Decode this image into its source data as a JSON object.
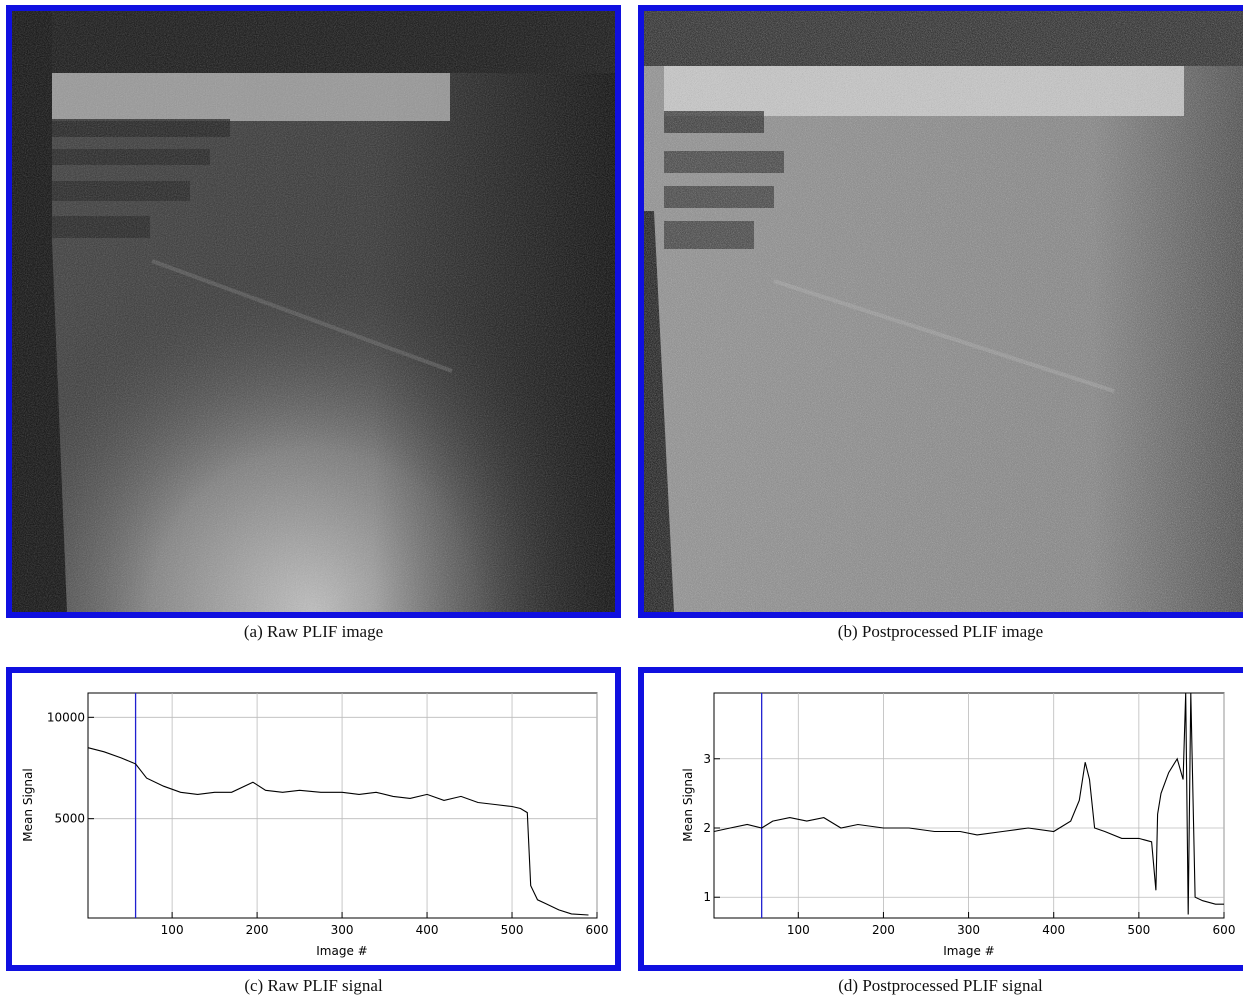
{
  "figure": {
    "panels": [
      {
        "id": "a",
        "caption": "(a) Raw PLIF image"
      },
      {
        "id": "b",
        "caption": "(b) Postprocessed PLIF image"
      },
      {
        "id": "c",
        "caption": "(c) Raw PLIF signal"
      },
      {
        "id": "d",
        "caption": "(d) Postprocessed PLIF signal"
      }
    ]
  },
  "chart_data": [
    {
      "type": "line",
      "xlabel": "Image #",
      "ylabel": "Mean Signal",
      "xlim": [
        1,
        600
      ],
      "ylim": [
        100,
        11200
      ],
      "xticks": [
        "100",
        "200",
        "300",
        "400",
        "500",
        "600"
      ],
      "yticks": [
        "5000",
        "10000"
      ],
      "grid": true,
      "marker_line_x": 57,
      "marker_line_color": "#2020d0",
      "series": [
        {
          "x": [
            1,
            20,
            40,
            57,
            70,
            90,
            110,
            130,
            150,
            170,
            195,
            210,
            230,
            250,
            275,
            300,
            320,
            340,
            360,
            380,
            400,
            420,
            440,
            460,
            480,
            500,
            510,
            518,
            522,
            530,
            540,
            555,
            570,
            590
          ],
          "y": [
            8500,
            8300,
            8000,
            7700,
            7000,
            6600,
            6300,
            6200,
            6300,
            6300,
            6800,
            6400,
            6300,
            6400,
            6300,
            6300,
            6200,
            6300,
            6100,
            6000,
            6200,
            5900,
            6100,
            5800,
            5700,
            5600,
            5500,
            5300,
            1700,
            1000,
            800,
            500,
            300,
            250
          ]
        }
      ]
    },
    {
      "type": "line",
      "xlabel": "Image #",
      "ylabel": "Mean Signal",
      "xlim": [
        1,
        600
      ],
      "ylim": [
        0.7,
        3.95
      ],
      "xticks": [
        "100",
        "200",
        "300",
        "400",
        "500",
        "600"
      ],
      "yticks": [
        "1",
        "2",
        "3"
      ],
      "grid": true,
      "marker_line_x": 57,
      "marker_line_color": "#2020d0",
      "series": [
        {
          "x": [
            1,
            20,
            40,
            57,
            70,
            90,
            110,
            130,
            150,
            170,
            200,
            230,
            260,
            290,
            310,
            340,
            370,
            400,
            420,
            430,
            437,
            442,
            448,
            460,
            480,
            500,
            515,
            520,
            522,
            526,
            535,
            545,
            552,
            555,
            558,
            561,
            566,
            575,
            590,
            600
          ],
          "y": [
            1.95,
            2.0,
            2.05,
            2.0,
            2.1,
            2.15,
            2.1,
            2.15,
            2.0,
            2.05,
            2.0,
            2.0,
            1.95,
            1.95,
            1.9,
            1.95,
            2.0,
            1.95,
            2.1,
            2.4,
            2.95,
            2.7,
            2.0,
            1.95,
            1.85,
            1.85,
            1.8,
            1.1,
            2.2,
            2.5,
            2.8,
            3.0,
            2.7,
            3.95,
            0.75,
            3.95,
            1.0,
            0.95,
            0.9,
            0.9
          ]
        }
      ]
    }
  ]
}
